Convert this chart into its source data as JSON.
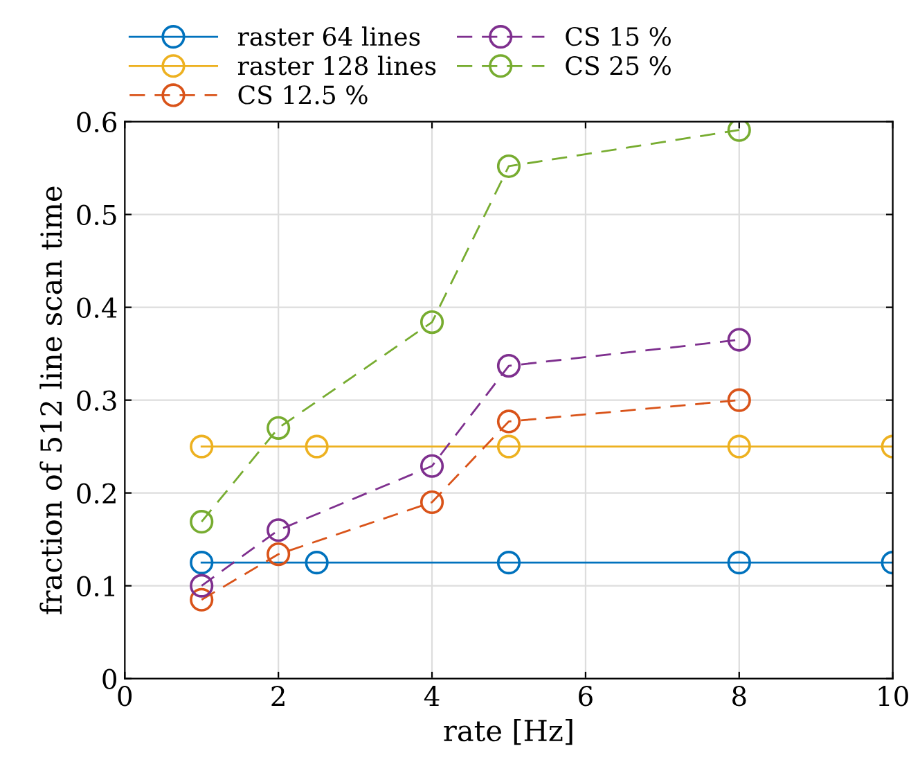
{
  "chart_data": {
    "type": "line",
    "xlabel": "rate [Hz]",
    "ylabel": "fraction of 512 line scan time",
    "xlim": [
      0,
      10
    ],
    "xticks": [
      0,
      2,
      4,
      6,
      8,
      10
    ],
    "ylim": [
      0,
      0.6
    ],
    "yticks": [
      0,
      0.1,
      0.2,
      0.3,
      0.4,
      0.5,
      0.6
    ],
    "grid": true,
    "legend": "top",
    "marker": "circle",
    "series": [
      {
        "name": "raster 64 lines",
        "color": "#0072bd",
        "line_style": "solid",
        "x": [
          1,
          2.5,
          5,
          8,
          10
        ],
        "values": [
          0.125,
          0.125,
          0.125,
          0.125,
          0.125
        ]
      },
      {
        "name": "raster 128 lines",
        "color": "#edb120",
        "line_style": "solid",
        "x": [
          1,
          2.5,
          5,
          8,
          10
        ],
        "values": [
          0.25,
          0.25,
          0.25,
          0.25,
          0.25
        ]
      },
      {
        "name": "CS 12.5 %",
        "color": "#d95319",
        "line_style": "dashed",
        "x": [
          1,
          2,
          4,
          5,
          8
        ],
        "values": [
          0.085,
          0.134,
          0.19,
          0.277,
          0.3
        ]
      },
      {
        "name": "CS 15 %",
        "color": "#7e2f8e",
        "line_style": "dashed",
        "x": [
          1,
          2,
          4,
          5,
          8
        ],
        "values": [
          0.1,
          0.16,
          0.229,
          0.337,
          0.365
        ]
      },
      {
        "name": "CS 25 %",
        "color": "#77ac30",
        "line_style": "dashed",
        "x": [
          1,
          2,
          4,
          5,
          8
        ],
        "values": [
          0.169,
          0.27,
          0.384,
          0.552,
          0.591
        ]
      }
    ]
  }
}
